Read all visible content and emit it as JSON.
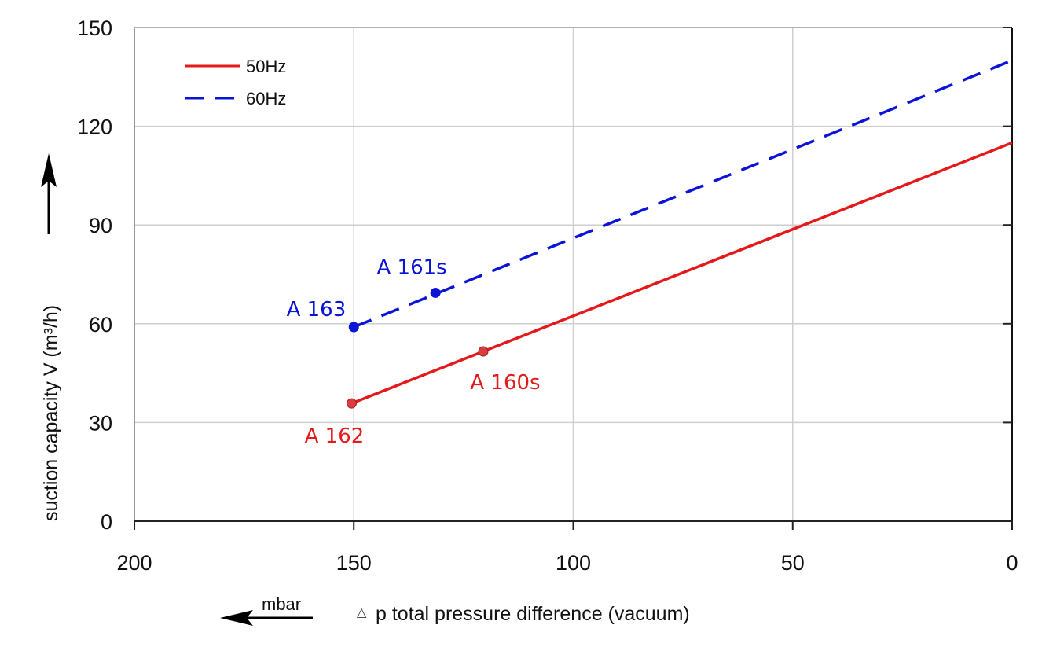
{
  "chart_data": {
    "type": "line",
    "title": "",
    "xlabel": "p total pressure difference (vacuum)",
    "xlabel_symbol": "△",
    "x_unit": "mbar",
    "ylabel": "suction capacity V (m³/h)",
    "xlim": [
      200,
      0
    ],
    "ylim": [
      0,
      150
    ],
    "x_ticks": [
      "200",
      "150",
      "100",
      "50",
      "0"
    ],
    "x_tick_values": [
      200,
      150,
      100,
      50,
      0
    ],
    "y_ticks": [
      "0",
      "30",
      "60",
      "90",
      "120",
      "150"
    ],
    "y_tick_values": [
      0,
      30,
      60,
      90,
      120,
      150
    ],
    "grid": true,
    "legend_position": "top-left",
    "series": [
      {
        "name": "50Hz",
        "color": "#e41a1a",
        "style": "solid",
        "x": [
          150.5,
          0
        ],
        "y": [
          35.8,
          115
        ]
      },
      {
        "name": "60Hz",
        "color": "#0a14d8",
        "style": "dashed",
        "x": [
          150,
          0
        ],
        "y": [
          59,
          140
        ]
      }
    ],
    "points": [
      {
        "label": "A 162",
        "series": "50Hz",
        "x": 150.5,
        "y": 35.8,
        "color": "#e41a1a",
        "fill": "#e0393e"
      },
      {
        "label": "A 160s",
        "series": "50Hz",
        "x": 120.5,
        "y": 51.6,
        "color": "#e41a1a",
        "fill": "#e0393e"
      },
      {
        "label": "A 163",
        "series": "60Hz",
        "x": 150,
        "y": 59,
        "color": "#0a14d8",
        "fill": "#0a14d8"
      },
      {
        "label": "A 161s",
        "series": "60Hz",
        "x": 131.4,
        "y": 69.4,
        "color": "#0a14d8",
        "fill": "#0a14d8"
      }
    ]
  }
}
